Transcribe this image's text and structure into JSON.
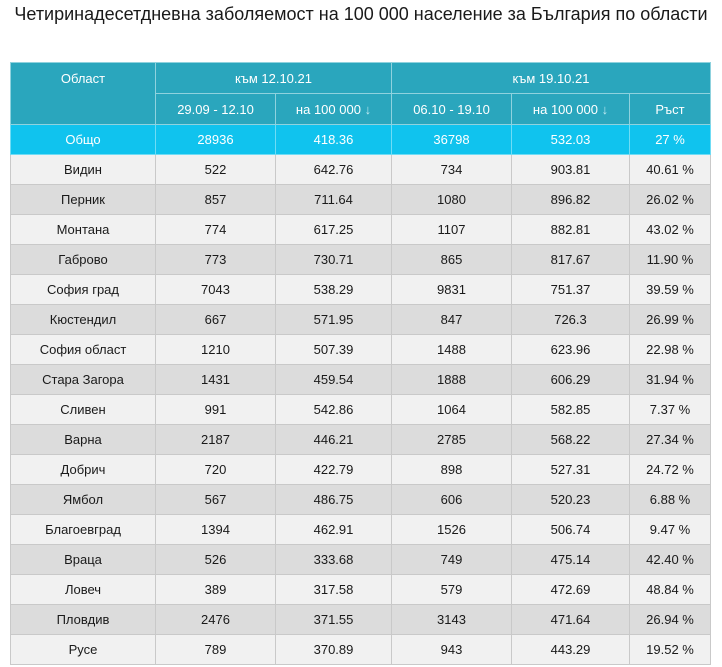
{
  "title": "Четиринадесетдневна заболяемост на 100 000 население за България по области",
  "header": {
    "region_label": "Област",
    "period1_label": "към 12.10.21",
    "period2_label": "към 19.10.21",
    "p1_range": "29.09 - 12.10",
    "p1_per100k": "на 100 000",
    "p2_range": "06.10 - 19.10",
    "p2_per100k": "на 100 000",
    "growth": "Ръст",
    "sort_arrow": "↓"
  },
  "total": {
    "region": "Общо",
    "cases1": "28936",
    "rate1": "418.36",
    "cases2": "36798",
    "rate2": "532.03",
    "growth": "27 %"
  },
  "rows": [
    {
      "region": "Видин",
      "cases1": "522",
      "rate1": "642.76",
      "cases2": "734",
      "rate2": "903.81",
      "growth": "40.61 %"
    },
    {
      "region": "Перник",
      "cases1": "857",
      "rate1": "711.64",
      "cases2": "1080",
      "rate2": "896.82",
      "growth": "26.02 %"
    },
    {
      "region": "Монтана",
      "cases1": "774",
      "rate1": "617.25",
      "cases2": "1107",
      "rate2": "882.81",
      "growth": "43.02 %"
    },
    {
      "region": "Габрово",
      "cases1": "773",
      "rate1": "730.71",
      "cases2": "865",
      "rate2": "817.67",
      "growth": "11.90 %"
    },
    {
      "region": "София град",
      "cases1": "7043",
      "rate1": "538.29",
      "cases2": "9831",
      "rate2": "751.37",
      "growth": "39.59 %"
    },
    {
      "region": "Кюстендил",
      "cases1": "667",
      "rate1": "571.95",
      "cases2": "847",
      "rate2": "726.3",
      "growth": "26.99 %"
    },
    {
      "region": "София област",
      "cases1": "1210",
      "rate1": "507.39",
      "cases2": "1488",
      "rate2": "623.96",
      "growth": "22.98 %"
    },
    {
      "region": "Стара Загора",
      "cases1": "1431",
      "rate1": "459.54",
      "cases2": "1888",
      "rate2": "606.29",
      "growth": "31.94 %"
    },
    {
      "region": "Сливен",
      "cases1": "991",
      "rate1": "542.86",
      "cases2": "1064",
      "rate2": "582.85",
      "growth": "7.37 %"
    },
    {
      "region": "Варна",
      "cases1": "2187",
      "rate1": "446.21",
      "cases2": "2785",
      "rate2": "568.22",
      "growth": "27.34 %"
    },
    {
      "region": "Добрич",
      "cases1": "720",
      "rate1": "422.79",
      "cases2": "898",
      "rate2": "527.31",
      "growth": "24.72 %"
    },
    {
      "region": "Ямбол",
      "cases1": "567",
      "rate1": "486.75",
      "cases2": "606",
      "rate2": "520.23",
      "growth": "6.88 %"
    },
    {
      "region": "Благоевград",
      "cases1": "1394",
      "rate1": "462.91",
      "cases2": "1526",
      "rate2": "506.74",
      "growth": "9.47 %"
    },
    {
      "region": "Враца",
      "cases1": "526",
      "rate1": "333.68",
      "cases2": "749",
      "rate2": "475.14",
      "growth": "42.40 %"
    },
    {
      "region": "Ловеч",
      "cases1": "389",
      "rate1": "317.58",
      "cases2": "579",
      "rate2": "472.69",
      "growth": "48.84 %"
    },
    {
      "region": "Пловдив",
      "cases1": "2476",
      "rate1": "371.55",
      "cases2": "3143",
      "rate2": "471.64",
      "growth": "26.94 %"
    },
    {
      "region": "Русе",
      "cases1": "789",
      "rate1": "370.89",
      "cases2": "943",
      "rate2": "443.29",
      "growth": "19.52 %"
    }
  ]
}
